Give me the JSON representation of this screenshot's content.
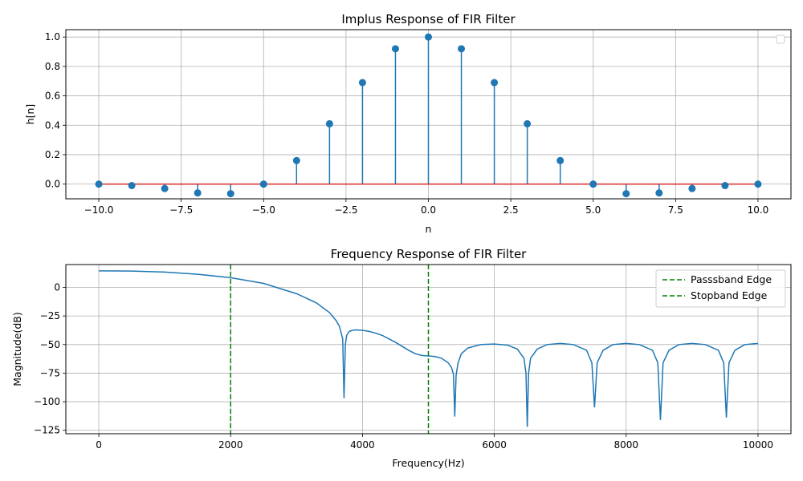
{
  "chart_data": [
    {
      "type": "stem",
      "title": "Implus Response of FIR Filter",
      "xlabel": "n",
      "ylabel": "h[n]",
      "xlim": [
        -11,
        11
      ],
      "ylim": [
        -0.1,
        1.05
      ],
      "xticks": [
        -10,
        -7.5,
        -5,
        -2.5,
        0,
        2.5,
        5,
        7.5,
        10
      ],
      "xtick_labels": [
        "−10.0",
        "−7.5",
        "−5.0",
        "−2.5",
        "0.0",
        "2.5",
        "5.0",
        "7.5",
        "10.0"
      ],
      "yticks": [
        0,
        0.2,
        0.4,
        0.6,
        0.8,
        1.0
      ],
      "ytick_labels": [
        "0.0",
        "0.2",
        "0.4",
        "0.6",
        "0.8",
        "1.0"
      ],
      "grid": true,
      "legend": "top-right (empty)",
      "colors": {
        "stem": "#1f77b4",
        "baseline": "#d62728"
      },
      "n": [
        -10,
        -9,
        -8,
        -7,
        -6,
        -5,
        -4,
        -3,
        -2,
        -1,
        0,
        1,
        2,
        3,
        4,
        5,
        6,
        7,
        8,
        9,
        10
      ],
      "h": [
        0.0,
        -0.01,
        -0.03,
        -0.06,
        -0.065,
        0.0,
        0.16,
        0.41,
        0.69,
        0.92,
        1.0,
        0.92,
        0.69,
        0.41,
        0.16,
        0.0,
        -0.065,
        -0.06,
        -0.03,
        -0.01,
        0.0
      ]
    },
    {
      "type": "line",
      "title": "Frequency Response of FIR Filter",
      "xlabel": "Frequency(Hz)",
      "ylabel": "Magnitude(dB)",
      "xlim": [
        -500,
        10500
      ],
      "ylim": [
        -128,
        20
      ],
      "xticks": [
        0,
        2000,
        4000,
        6000,
        8000,
        10000
      ],
      "xtick_labels": [
        "0",
        "2000",
        "4000",
        "6000",
        "8000",
        "10000"
      ],
      "yticks": [
        0,
        -25,
        -50,
        -75,
        -100,
        -125
      ],
      "ytick_labels": [
        "0",
        "−25",
        "−50",
        "−75",
        "−100",
        "−125"
      ],
      "grid": true,
      "legend": "top-right",
      "colors": {
        "response": "#1f77b4",
        "edges": "#008000"
      },
      "series": [
        {
          "key": "magnitude",
          "x": [
            0,
            500,
            1000,
            1500,
            2000,
            2500,
            3000,
            3300,
            3500,
            3600,
            3650,
            3700,
            3720,
            3740,
            3760,
            3800,
            3850,
            3900,
            4000,
            4100,
            4200,
            4300,
            4400,
            4500,
            4600,
            4700,
            4800,
            4900,
            5000,
            5100,
            5200,
            5300,
            5350,
            5380,
            5400,
            5420,
            5450,
            5500,
            5600,
            5800,
            6000,
            6200,
            6350,
            6450,
            6480,
            6500,
            6520,
            6550,
            6650,
            6800,
            7000,
            7200,
            7400,
            7480,
            7520,
            7560,
            7650,
            7800,
            8000,
            8200,
            8400,
            8480,
            8520,
            8560,
            8650,
            8800,
            9000,
            9200,
            9400,
            9480,
            9520,
            9560,
            9650,
            9800,
            10000
          ],
          "y": [
            14.5,
            14.3,
            13.4,
            11.5,
            8.5,
            3.5,
            -5.5,
            -13.5,
            -22,
            -29,
            -34,
            -45,
            -97,
            -50,
            -42,
            -38.5,
            -37.5,
            -37.2,
            -37.5,
            -38.5,
            -40,
            -42,
            -45,
            -48,
            -51.5,
            -55,
            -58,
            -59.5,
            -60,
            -60.5,
            -62,
            -66,
            -70,
            -76,
            -113,
            -77,
            -66,
            -58,
            -53,
            -50,
            -49.5,
            -50.5,
            -54,
            -62,
            -75,
            -122,
            -75,
            -62,
            -54,
            -50,
            -49,
            -50,
            -55,
            -66,
            -105,
            -66,
            -55,
            -50,
            -49,
            -50,
            -55,
            -66,
            -116,
            -66,
            -55,
            -50,
            -49,
            -50,
            -55,
            -66,
            -114,
            -66,
            -55,
            -50,
            -49
          ]
        }
      ],
      "vlines": [
        {
          "x": 2000,
          "label": "Passsband Edge"
        },
        {
          "x": 5000,
          "label": "Stopband Edge"
        }
      ]
    }
  ]
}
